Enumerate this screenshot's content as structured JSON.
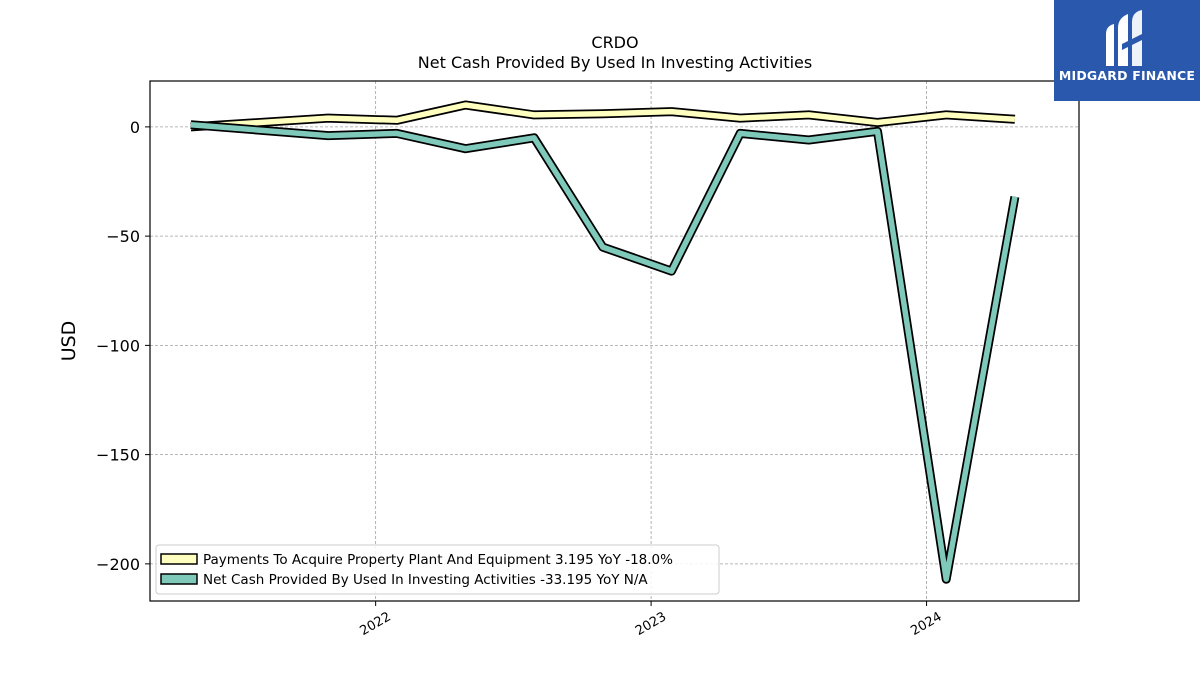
{
  "chart_data": {
    "type": "line",
    "title": "CRDO",
    "subtitle": "Net Cash Provided By Used In Investing Activities",
    "xlabel": "",
    "ylabel": "USD",
    "ylim": [
      -217,
      21
    ],
    "xlim": [
      "2021-03-08",
      "2024-07-21"
    ],
    "xticks": [
      {
        "label": "2022",
        "date": "2022-01-01"
      },
      {
        "label": "2023",
        "date": "2023-01-01"
      },
      {
        "label": "2024",
        "date": "2024-01-01"
      }
    ],
    "yticks": [
      0,
      -50,
      -100,
      -150,
      -200
    ],
    "ytick_labels": [
      "0",
      "−50",
      "−100",
      "−150",
      "−200"
    ],
    "grid": true,
    "legend_position": "lower-left",
    "series": [
      {
        "name": "Payments To Acquire Property Plant And Equipment  3.195 YoY -18.0%",
        "color": "#ffffbf",
        "points": [
          {
            "date": "2021-05-01",
            "value": 0
          },
          {
            "date": "2021-10-30",
            "value": 4
          },
          {
            "date": "2022-01-29",
            "value": 3
          },
          {
            "date": "2022-04-30",
            "value": 10
          },
          {
            "date": "2022-07-30",
            "value": 5.5
          },
          {
            "date": "2022-10-29",
            "value": 6
          },
          {
            "date": "2023-01-28",
            "value": 7
          },
          {
            "date": "2023-04-29",
            "value": 4
          },
          {
            "date": "2023-07-29",
            "value": 5.5
          },
          {
            "date": "2023-10-28",
            "value": 2
          },
          {
            "date": "2024-01-27",
            "value": 5.5
          },
          {
            "date": "2024-04-27",
            "value": 3.5
          }
        ]
      },
      {
        "name": "Net Cash Provided By Used In Investing Activities  -33.195 YoY N/A",
        "color": "#7fc9bb",
        "points": [
          {
            "date": "2021-05-01",
            "value": 1
          },
          {
            "date": "2021-10-30",
            "value": -4
          },
          {
            "date": "2022-01-29",
            "value": -3
          },
          {
            "date": "2022-04-30",
            "value": -10
          },
          {
            "date": "2022-07-30",
            "value": -5
          },
          {
            "date": "2022-10-29",
            "value": -55
          },
          {
            "date": "2023-01-28",
            "value": -66
          },
          {
            "date": "2023-04-29",
            "value": -3
          },
          {
            "date": "2023-07-29",
            "value": -6
          },
          {
            "date": "2023-10-28",
            "value": -2
          },
          {
            "date": "2024-01-27",
            "value": -207
          },
          {
            "date": "2024-04-27",
            "value": -32
          }
        ]
      }
    ]
  },
  "logo": {
    "text": "MIDGARD FINANCE",
    "background": "#2a58ad"
  }
}
